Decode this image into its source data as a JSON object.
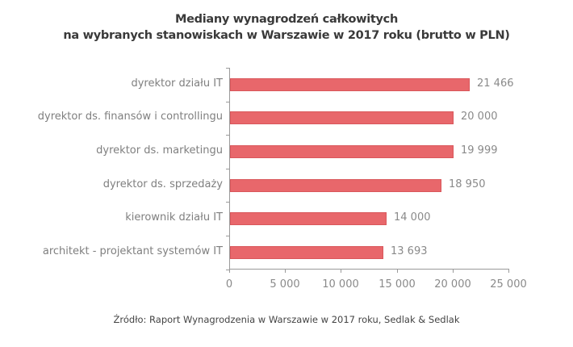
{
  "chart_data": {
    "type": "bar",
    "orientation": "horizontal",
    "title": "Mediany wynagrodzeń całkowitych na wybranych stanowiskach w Warszawie w 2017 roku (brutto w PLN)",
    "title_lines": [
      "Mediany wynagrodzeń całkowitych",
      "na wybranych stanowiskach w Warszawie w 2017 roku (brutto w PLN)"
    ],
    "categories": [
      "dyrektor działu IT",
      "dyrektor ds. finansów i controllingu",
      "dyrektor ds. marketingu",
      "dyrektor ds. sprzedaży",
      "kierownik działu IT",
      "architekt - projektant systemów IT"
    ],
    "values": [
      21466,
      20000,
      19999,
      18950,
      14000,
      13693
    ],
    "value_labels": [
      "21 466",
      "20 000",
      "19 999",
      "18 950",
      "14 000",
      "13 693"
    ],
    "xlabel": "",
    "ylabel": "",
    "xlim": [
      0,
      25000
    ],
    "x_ticks": [
      0,
      5000,
      10000,
      15000,
      20000,
      25000
    ],
    "x_tick_labels": [
      "0",
      "5 000",
      "10 000",
      "15 000",
      "20 000",
      "25 000"
    ],
    "grid": false,
    "legend": null,
    "bar_color": "#e8676b",
    "source": "Źródło: Raport Wynagrodzenia w Warszawie w 2017 roku, Sedlak & Sedlak"
  }
}
